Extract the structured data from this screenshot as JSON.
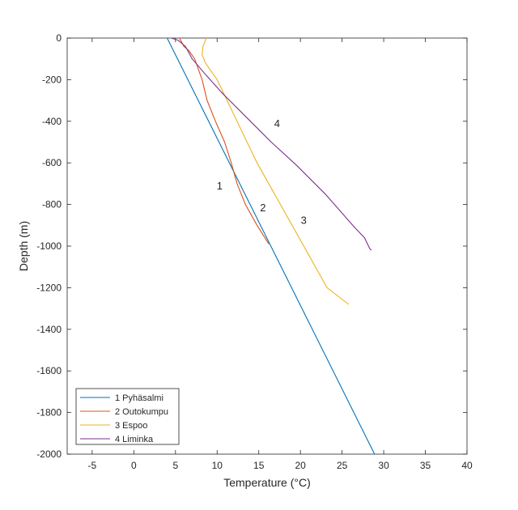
{
  "chart_data": {
    "type": "line",
    "xlabel": "Temperature (°C)",
    "ylabel": "Depth (m)",
    "xlim": [
      -8,
      40
    ],
    "ylim": [
      -2000,
      0
    ],
    "xticks": [
      "-5",
      "0",
      "5",
      "10",
      "15",
      "20",
      "25",
      "30",
      "35",
      "40"
    ],
    "yticks": [
      "0",
      "-200",
      "-400",
      "-600",
      "-800",
      "-1000",
      "-1200",
      "-1400",
      "-1600",
      "-1800",
      "-2000"
    ],
    "legend_position": "bottom-left",
    "series": [
      {
        "name": "1 Pyhäsalmi",
        "color": "#0072BD",
        "points": [
          [
            4.0,
            0
          ],
          [
            28.9,
            -2000
          ]
        ]
      },
      {
        "name": "2 Outokumpu",
        "color": "#D95319",
        "points": [
          [
            5.5,
            0
          ],
          [
            6.0,
            -40
          ],
          [
            6.6,
            -60
          ],
          [
            7.3,
            -100
          ],
          [
            8.2,
            -200
          ],
          [
            8.8,
            -300
          ],
          [
            9.8,
            -400
          ],
          [
            10.9,
            -500
          ],
          [
            11.7,
            -600
          ],
          [
            12.4,
            -700
          ],
          [
            13.4,
            -800
          ],
          [
            14.8,
            -900
          ],
          [
            16.2,
            -990
          ]
        ]
      },
      {
        "name": "3 Espoo",
        "color": "#EDB120",
        "points": [
          [
            8.7,
            0
          ],
          [
            8.3,
            -40
          ],
          [
            8.2,
            -80
          ],
          [
            8.6,
            -120
          ],
          [
            10.0,
            -200
          ],
          [
            12.4,
            -400
          ],
          [
            14.8,
            -600
          ],
          [
            17.6,
            -800
          ],
          [
            20.4,
            -1000
          ],
          [
            23.2,
            -1200
          ],
          [
            25.8,
            -1280
          ]
        ]
      },
      {
        "name": "4 Liminka",
        "color": "#7E2F8E",
        "points": [
          [
            4.5,
            0
          ],
          [
            5.3,
            -10
          ],
          [
            6.2,
            -40
          ],
          [
            7.0,
            -100
          ],
          [
            8.5,
            -170
          ],
          [
            10.5,
            -260
          ],
          [
            13.5,
            -380
          ],
          [
            16.5,
            -500
          ],
          [
            19.5,
            -610
          ],
          [
            23.0,
            -750
          ],
          [
            26.5,
            -910
          ],
          [
            27.7,
            -960
          ],
          [
            28.3,
            -1010
          ],
          [
            28.5,
            -1020
          ]
        ]
      }
    ],
    "annotations": [
      {
        "text": "1",
        "x": 10.3,
        "y": -712
      },
      {
        "text": "2",
        "x": 15.5,
        "y": -818
      },
      {
        "text": "3",
        "x": 20.4,
        "y": -877
      },
      {
        "text": "4",
        "x": 17.2,
        "y": -412
      }
    ]
  }
}
